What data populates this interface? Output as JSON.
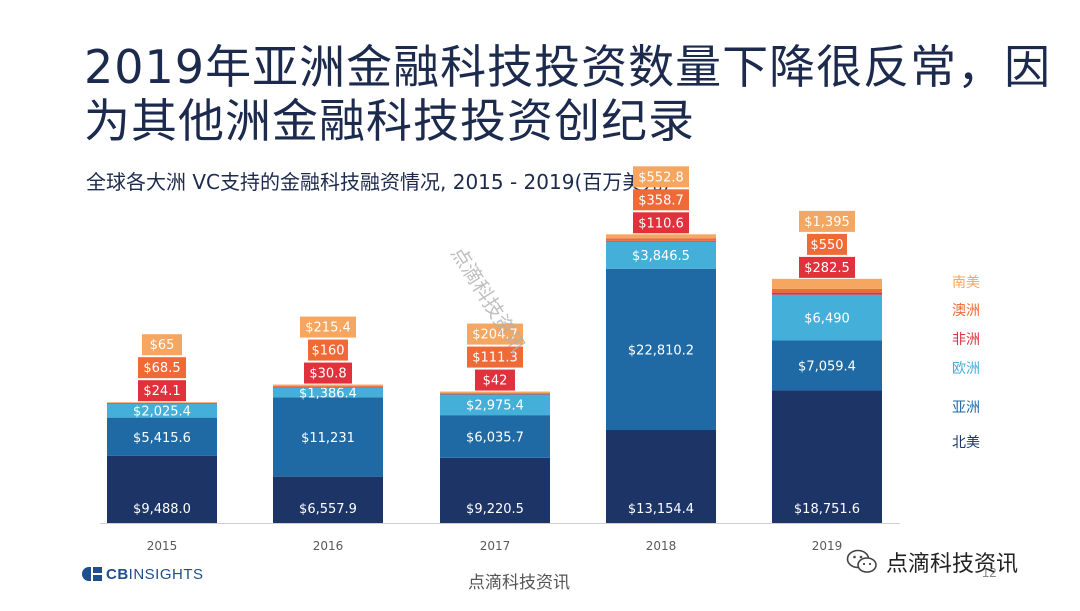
{
  "header": {
    "title_line1": "2019年亚洲金融科技投资数量下降很反常，因",
    "title_line2": "为其他洲金融科技投资创纪录",
    "subtitle": "全球各大洲 VC支持的金融科技融资情况, 2015 -   2019(百万美元)"
  },
  "chart_data": {
    "type": "bar",
    "stacked": true,
    "categories": [
      "2015",
      "2016",
      "2017",
      "2018",
      "2019"
    ],
    "series": [
      {
        "name": "北美",
        "values": [
          9488.0,
          6557.9,
          9220.5,
          13154.4,
          18751.6
        ],
        "labels": [
          "$9,488.0",
          "$6,557.9",
          "$9,220.5",
          "$13,154.4",
          "$18,751.6"
        ],
        "color": "#1c3466"
      },
      {
        "name": "亚洲",
        "values": [
          5415.6,
          11231,
          6035.7,
          22810.2,
          7059.4
        ],
        "labels": [
          "$5,415.6",
          "$11,231",
          "$6,035.7",
          "$22,810.2",
          "$7,059.4"
        ],
        "color": "#1f6aa5"
      },
      {
        "name": "欧洲",
        "values": [
          2025.4,
          1386.4,
          2975.4,
          3846.5,
          6490
        ],
        "labels": [
          "$2,025.4",
          "$1,386.4",
          "$2,975.4",
          "$3,846.5",
          "$6,490"
        ],
        "color": "#44afd8"
      },
      {
        "name": "非洲",
        "values": [
          24.1,
          30.8,
          42,
          110.6,
          282.5
        ],
        "labels": [
          "$24.1",
          "$30.8",
          "$42",
          "$110.6",
          "$282.5"
        ],
        "color": "#e0313d"
      },
      {
        "name": "澳洲",
        "values": [
          68.5,
          160,
          111.3,
          358.7,
          550
        ],
        "labels": [
          "$68.5",
          "$160",
          "$111.3",
          "$358.7",
          "$550"
        ],
        "color": "#ef6a37"
      },
      {
        "name": "南美",
        "values": [
          65,
          215.4,
          204.7,
          552.8,
          1395
        ],
        "labels": [
          "$65",
          "$215.4",
          "$204.7",
          "$552.8",
          "$1,395"
        ],
        "color": "#f5a660"
      }
    ],
    "legend_position": "right",
    "grid": false
  },
  "footer": {
    "logo_text_bold": "CB",
    "logo_text": "INSIGHTS",
    "center_text": "点滴科技资讯",
    "page_number": "12",
    "badge_text": "点滴科技资讯",
    "watermark": "点滴科技资讯"
  }
}
